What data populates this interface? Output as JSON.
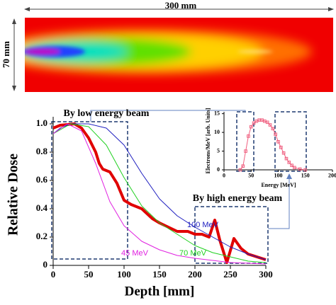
{
  "image_labels": {
    "width": "300 mm",
    "height": "70 mm"
  },
  "chart_data": [
    {
      "type": "line",
      "xlabel": "Depth [mm]",
      "ylabel": "Relative Dose",
      "xlim": [
        0,
        300
      ],
      "xticks": [
        0,
        50,
        100,
        150,
        200,
        250,
        300
      ],
      "ylim": [
        0,
        1.05
      ],
      "yticks": [
        0,
        0.2,
        0.4,
        0.6,
        0.8,
        {
          "value": 1,
          "label": "1.0"
        }
      ],
      "annotations": [
        "By low energy beam",
        "By high energy beam"
      ],
      "series": [
        {
          "color": "#e00000",
          "width": 4,
          "x": [
            0,
            10,
            30,
            40,
            50,
            60,
            65,
            70,
            80,
            90,
            100,
            110,
            125,
            140,
            150,
            175,
            190,
            200,
            210,
            220,
            228,
            235,
            245,
            255,
            265,
            275,
            300
          ],
          "values": [
            0.97,
            0.99,
            1.0,
            0.97,
            0.9,
            0.8,
            0.72,
            0.68,
            0.66,
            0.58,
            0.46,
            0.43,
            0.4,
            0.33,
            0.3,
            0.24,
            0.24,
            0.22,
            0.22,
            0.2,
            0.32,
            0.18,
            0.02,
            0.19,
            0.12,
            0.08,
            0.04
          ]
        },
        {
          "name": "100 MeV",
          "color": "#2020c0",
          "width": 1,
          "x": [
            0,
            10,
            25,
            50,
            75,
            100,
            125,
            150,
            175,
            200,
            225,
            250,
            275,
            300
          ],
          "values": [
            0.93,
            0.97,
            1.0,
            1.0,
            0.97,
            0.85,
            0.65,
            0.47,
            0.35,
            0.27,
            0.2,
            0.13,
            0.08,
            0.04
          ]
        },
        {
          "name": "70 MeV",
          "color": "#20d020",
          "width": 1,
          "x": [
            0,
            25,
            50,
            75,
            100,
            125,
            150,
            175,
            200,
            225,
            250,
            275,
            300
          ],
          "values": [
            0.93,
            1.0,
            0.98,
            0.85,
            0.62,
            0.42,
            0.3,
            0.22,
            0.14,
            0.09,
            0.06,
            0.03,
            0.02
          ]
        },
        {
          "name": "45 MeV",
          "color": "#e020e0",
          "width": 1,
          "x": [
            0,
            20,
            40,
            60,
            80,
            100,
            125,
            150,
            175,
            200,
            250,
            300
          ],
          "values": [
            0.93,
            1.0,
            0.95,
            0.72,
            0.45,
            0.28,
            0.17,
            0.11,
            0.07,
            0.05,
            0.02,
            0.01
          ]
        }
      ]
    },
    {
      "type": "line",
      "markers": true,
      "xlabel": "Energy [MeV]",
      "ylabel": "Electrons/MeV [arb. Units]",
      "xlim": [
        0,
        200
      ],
      "xticks": [
        0,
        50,
        100,
        150,
        200
      ],
      "ylim": [
        0,
        15.5
      ],
      "yticks": [
        0,
        5,
        10,
        15
      ],
      "series": [
        {
          "color": "#f06080",
          "width": 1,
          "x": [
            30,
            35,
            40,
            45,
            50,
            55,
            60,
            65,
            70,
            75,
            80,
            85,
            90,
            95,
            100,
            105,
            110,
            115,
            120,
            125,
            130,
            140,
            150
          ],
          "values": [
            0,
            1,
            5,
            9,
            11.5,
            12.5,
            13,
            13.3,
            13.3,
            13,
            12.7,
            12,
            11,
            9.5,
            7.5,
            6,
            4.5,
            3,
            2,
            1.2,
            0.6,
            0.2,
            0
          ]
        }
      ]
    }
  ]
}
